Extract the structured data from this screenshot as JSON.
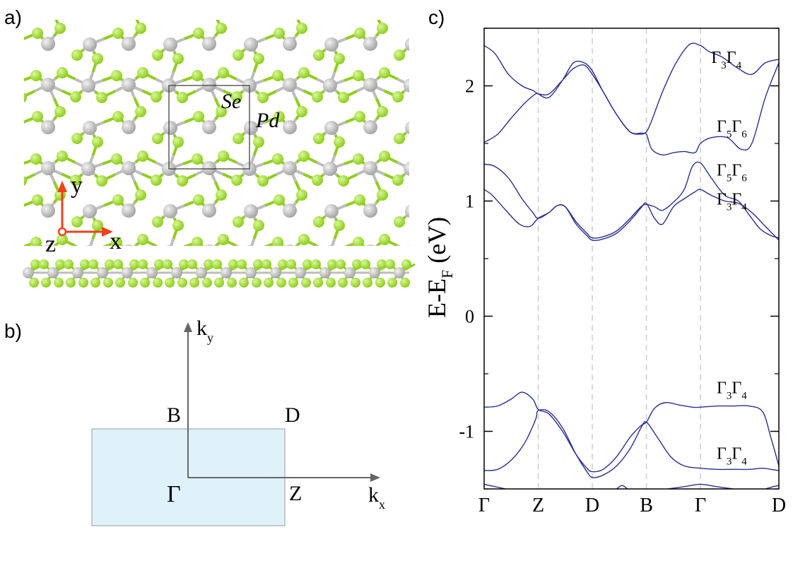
{
  "panel_a": {
    "label": "a)",
    "atom_labels": {
      "se": "Se",
      "pd": "Pd"
    },
    "axes": {
      "x": "x",
      "y": "y",
      "z": "z"
    },
    "colors": {
      "se_atom": "#8fce1c",
      "pd_atom": "#a6a6a6",
      "axis_arrow": "#f0401c"
    }
  },
  "panel_b": {
    "label": "b)",
    "points": {
      "B": "B",
      "D": "D",
      "Gamma": "Γ",
      "Z": "Z"
    },
    "axes": {
      "kx": "k",
      "kx_sub": "x",
      "ky": "k",
      "ky_sub": "y"
    },
    "colors": {
      "brillouin_zone": "#dff2fa"
    }
  },
  "chart_data": {
    "type": "line",
    "label": "c)",
    "ylabel": "E-E",
    "ylabel_sub": "F",
    "ylabel_unit": "(eV)",
    "ylim": [
      -1.5,
      2.5
    ],
    "yticks": [
      -1,
      0,
      1,
      2
    ],
    "ytick_labels": [
      "-1",
      "0",
      "1",
      "2"
    ],
    "x_tick_labels": [
      "Γ",
      "Z",
      "D",
      "B",
      "Γ",
      "D"
    ],
    "x_tick_positions": [
      0,
      1,
      2,
      3,
      4,
      5.45
    ],
    "xlim": [
      0,
      5.45
    ],
    "vertical_dashed_lines": [
      1,
      2,
      3,
      4
    ],
    "line_color": "#2a2f8c",
    "annotations": [
      {
        "text": [
          "Γ",
          "3",
          "Γ",
          "4"
        ],
        "x": 4.2,
        "y": 2.2
      },
      {
        "text": [
          "Γ",
          "5",
          "Γ",
          "6"
        ],
        "x": 4.3,
        "y": 1.6
      },
      {
        "text": [
          "Γ",
          "5",
          "Γ",
          "6"
        ],
        "x": 4.3,
        "y": 1.22
      },
      {
        "text": [
          "Γ",
          "3",
          "Γ",
          "4"
        ],
        "x": 4.3,
        "y": 0.97
      },
      {
        "text": [
          "Γ",
          "3",
          "Γ",
          "4"
        ],
        "x": 4.3,
        "y": -0.67
      },
      {
        "text": [
          "Γ",
          "3",
          "Γ",
          "4"
        ],
        "x": 4.3,
        "y": -1.24
      }
    ],
    "series": [
      {
        "x": [
          0,
          0.2,
          0.45,
          0.7,
          0.9,
          1.0,
          1.2,
          1.45,
          1.65,
          1.85,
          2.0,
          2.2,
          2.45,
          2.7,
          2.9,
          3.0,
          3.1,
          3.3,
          3.55,
          3.8,
          4.0,
          4.15,
          4.4,
          4.7,
          4.95,
          5.2,
          5.45
        ],
        "y": [
          2.35,
          2.28,
          2.1,
          2.0,
          1.96,
          1.93,
          1.9,
          2.05,
          2.2,
          2.2,
          2.13,
          1.95,
          1.75,
          1.6,
          1.59,
          1.6,
          1.7,
          1.95,
          2.2,
          2.36,
          2.35,
          2.3,
          2.25,
          2.15,
          2.1,
          2.2,
          2.23
        ]
      },
      {
        "x": [
          0,
          0.25,
          0.5,
          0.75,
          0.95,
          1.0,
          1.2,
          1.45,
          1.65,
          1.85,
          2.0,
          2.2,
          2.45,
          2.7,
          2.9,
          3.0,
          3.1,
          3.3,
          3.5,
          3.7,
          3.9,
          4.0,
          4.2,
          4.5,
          4.75,
          4.95,
          5.2,
          5.45
        ],
        "y": [
          1.51,
          1.58,
          1.72,
          1.85,
          1.93,
          1.93,
          1.93,
          2.05,
          2.15,
          2.18,
          2.1,
          1.95,
          1.75,
          1.6,
          1.58,
          1.58,
          1.45,
          1.4,
          1.42,
          1.43,
          1.42,
          1.5,
          1.55,
          1.55,
          1.45,
          1.5,
          1.9,
          2.2
        ]
      },
      {
        "x": [
          0,
          0.2,
          0.45,
          0.7,
          0.9,
          1.0,
          1.2,
          1.35,
          1.5,
          1.7,
          1.9,
          2.0,
          2.2,
          2.45,
          2.7,
          2.9,
          3.0,
          3.15,
          3.3,
          3.5,
          3.7,
          3.85,
          4.0,
          4.2,
          4.45,
          4.7,
          4.9,
          5.1,
          5.3,
          5.45
        ],
        "y": [
          1.32,
          1.3,
          1.2,
          1.02,
          0.9,
          0.85,
          0.9,
          0.96,
          0.95,
          0.82,
          0.72,
          0.68,
          0.69,
          0.74,
          0.85,
          0.95,
          0.97,
          0.95,
          0.92,
          0.99,
          1.1,
          1.3,
          1.33,
          1.2,
          1.05,
          1.0,
          0.88,
          0.76,
          0.7,
          0.68
        ]
      },
      {
        "x": [
          0,
          0.15,
          0.4,
          0.65,
          0.85,
          1.0,
          1.2,
          1.35,
          1.5,
          1.7,
          1.9,
          2.0,
          2.2,
          2.45,
          2.7,
          2.9,
          3.0,
          3.15,
          3.3,
          3.5,
          3.7,
          3.9,
          4.0,
          4.2,
          4.45,
          4.7,
          4.95,
          5.2,
          5.45
        ],
        "y": [
          1.1,
          1.05,
          0.92,
          0.8,
          0.78,
          0.85,
          0.9,
          0.96,
          0.95,
          0.8,
          0.7,
          0.66,
          0.67,
          0.72,
          0.83,
          0.94,
          0.98,
          0.85,
          0.8,
          0.95,
          1.02,
          1.08,
          1.1,
          1.05,
          1.0,
          0.98,
          0.9,
          0.78,
          0.66
        ]
      },
      {
        "x": [
          0,
          0.25,
          0.5,
          0.7,
          0.9,
          1.0,
          1.2,
          1.45,
          1.7,
          1.9,
          2.0,
          2.2,
          2.45,
          2.7,
          2.9,
          3.0,
          3.15,
          3.35,
          3.6,
          3.85,
          4.0,
          4.3,
          4.6,
          4.9,
          5.15,
          5.3,
          5.45
        ],
        "y": [
          -0.79,
          -0.78,
          -0.72,
          -0.66,
          -0.72,
          -0.81,
          -0.85,
          -1.0,
          -1.2,
          -1.32,
          -1.35,
          -1.33,
          -1.22,
          -1.05,
          -0.95,
          -0.92,
          -0.8,
          -0.75,
          -0.77,
          -0.79,
          -0.79,
          -0.78,
          -0.78,
          -0.78,
          -0.83,
          -1.05,
          -1.3
        ]
      },
      {
        "x": [
          0,
          0.25,
          0.5,
          0.75,
          0.95,
          1.0,
          1.2,
          1.45,
          1.7,
          1.9,
          2.0,
          2.2,
          2.45,
          2.7,
          2.9,
          3.0,
          3.2,
          3.45,
          3.7,
          4.0,
          4.3,
          4.6,
          4.9,
          5.15,
          5.3,
          5.45
        ],
        "y": [
          -1.34,
          -1.33,
          -1.25,
          -1.1,
          -0.9,
          -0.82,
          -0.83,
          -0.97,
          -1.2,
          -1.35,
          -1.4,
          -1.38,
          -1.3,
          -1.15,
          -0.97,
          -0.92,
          -1.05,
          -1.22,
          -1.3,
          -1.32,
          -1.33,
          -1.33,
          -1.33,
          -1.32,
          -1.33,
          -1.34
        ]
      },
      {
        "x": [
          0,
          0.2,
          0.4
        ],
        "y": [
          -1.46,
          -1.48,
          -1.5
        ]
      },
      {
        "x": [
          2.45,
          2.55,
          2.65
        ],
        "y": [
          -1.5,
          -1.47,
          -1.5
        ]
      },
      {
        "x": [
          3.4,
          3.7,
          4.0,
          4.3,
          4.6
        ],
        "y": [
          -1.5,
          -1.48,
          -1.46,
          -1.48,
          -1.5
        ]
      },
      {
        "x": [
          5.2,
          5.35,
          5.45
        ],
        "y": [
          -1.5,
          -1.48,
          -1.47
        ]
      }
    ]
  }
}
